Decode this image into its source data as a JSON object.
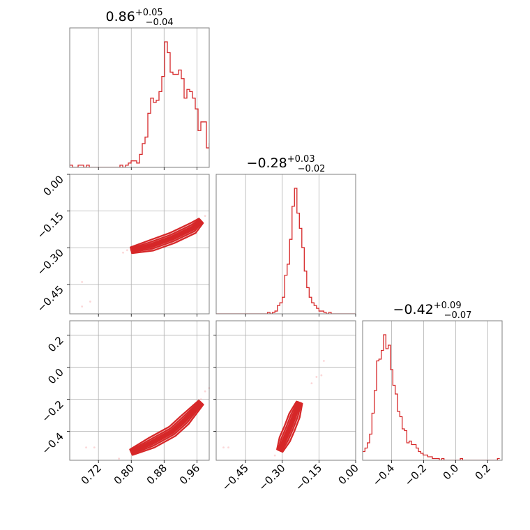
{
  "figure": {
    "type": "corner_plot",
    "color": "#d62728",
    "fill_light": "#f4c6c7",
    "fill_mid": "#e88d8f",
    "points_color": "#f7b6b8"
  },
  "chart_data": [
    {
      "type": "histogram",
      "panel": "hist-0",
      "title": {
        "value": "0.86",
        "plus": "+0.05",
        "minus": "−0.04"
      },
      "xlim": [
        0.65,
        0.99
      ],
      "x_grid": [
        0.72,
        0.8,
        0.88,
        0.96
      ],
      "bins_edges_start": 0.65,
      "bin_width": 0.0068,
      "counts": [
        1,
        0,
        0,
        1,
        1,
        0,
        1,
        0,
        0,
        0,
        0,
        0,
        0,
        0,
        0,
        0,
        0,
        0,
        1,
        0,
        1,
        2,
        3,
        3,
        2,
        6,
        11,
        14,
        25,
        32,
        30,
        31,
        35,
        42,
        58,
        53,
        44,
        43,
        43,
        45,
        41,
        32,
        36,
        35,
        32,
        27,
        17,
        21,
        21,
        9,
        11,
        8,
        3,
        5,
        2
      ]
    },
    {
      "type": "histogram",
      "panel": "hist-1",
      "title": {
        "value": "−0.28",
        "plus": "+0.03",
        "minus": "−0.02"
      },
      "xlim": [
        -0.57,
        0.0
      ],
      "x_grid": [
        -0.45,
        -0.3,
        -0.15,
        0.0
      ],
      "bins_edges_start": -0.57,
      "bin_width": 0.01,
      "counts": [
        0,
        0,
        0,
        0,
        0,
        0,
        0,
        0,
        0,
        0,
        0,
        0,
        0,
        0,
        0,
        0,
        0,
        0,
        0,
        0,
        0,
        1,
        0,
        1,
        2,
        6,
        8,
        12,
        28,
        36,
        54,
        78,
        91,
        73,
        62,
        48,
        31,
        19,
        12,
        8,
        6,
        4,
        2,
        2,
        1,
        0,
        1,
        0,
        0,
        0,
        0,
        0,
        0,
        0,
        0,
        0,
        0
      ]
    },
    {
      "type": "histogram",
      "panel": "hist-2",
      "title": {
        "value": "−0.42",
        "plus": "+0.09",
        "minus": "−0.07"
      },
      "xlim": [
        -0.58,
        0.29
      ],
      "x_ticks": [
        "−0.4",
        "−0.2",
        "0.0",
        "0.2"
      ],
      "x_tick_values": [
        -0.4,
        -0.2,
        0.0,
        0.2
      ],
      "bins_edges_start": -0.58,
      "bin_width": 0.0145,
      "counts": [
        5,
        7,
        10,
        15,
        27,
        40,
        57,
        58,
        63,
        72,
        64,
        66,
        52,
        43,
        38,
        28,
        25,
        18,
        17,
        10,
        11,
        9,
        9,
        7,
        5,
        4,
        3,
        3,
        2,
        2,
        1,
        1,
        1,
        0,
        1,
        0,
        0,
        0,
        0,
        0,
        0,
        0,
        1,
        0,
        0,
        0,
        0,
        0,
        0,
        0,
        0,
        0,
        0,
        0,
        0,
        0,
        0,
        0,
        1
      ]
    },
    {
      "type": "contour",
      "panel": "scatter-1-0",
      "xlim": [
        0.65,
        0.99
      ],
      "ylim": [
        -0.57,
        0.0
      ],
      "x_grid": [
        0.72,
        0.8,
        0.88,
        0.96
      ],
      "y_ticks": [
        "0.00",
        "−0.15",
        "−0.30",
        "−0.45"
      ],
      "y_tick_values": [
        0.0,
        -0.15,
        -0.3,
        -0.45
      ],
      "ridge": [
        [
          0.8,
          -0.31
        ],
        [
          0.85,
          -0.29
        ],
        [
          0.9,
          -0.26
        ],
        [
          0.95,
          -0.22
        ],
        [
          0.97,
          -0.19
        ]
      ],
      "samples": [
        [
          0.68,
          -0.44
        ],
        [
          0.68,
          -0.54
        ],
        [
          0.7,
          -0.52
        ],
        [
          0.78,
          -0.32
        ],
        [
          0.79,
          -0.31
        ],
        [
          0.98,
          -0.17
        ]
      ]
    },
    {
      "type": "contour",
      "panel": "scatter-2-0",
      "xlim": [
        0.65,
        0.99
      ],
      "ylim": [
        -0.58,
        0.29
      ],
      "x_ticks": [
        "0.72",
        "0.80",
        "0.88",
        "0.96"
      ],
      "x_tick_values": [
        0.72,
        0.8,
        0.88,
        0.96
      ],
      "y_ticks": [
        "0.2",
        "0.0",
        "−0.2",
        "−0.4"
      ],
      "y_tick_values": [
        0.2,
        0.0,
        -0.2,
        -0.4
      ],
      "ridge": [
        [
          0.8,
          -0.53
        ],
        [
          0.85,
          -0.47
        ],
        [
          0.9,
          -0.4
        ],
        [
          0.93,
          -0.33
        ],
        [
          0.97,
          -0.22
        ]
      ],
      "samples": [
        [
          0.69,
          -0.5
        ],
        [
          0.71,
          -0.5
        ],
        [
          0.77,
          -0.57
        ],
        [
          0.96,
          -0.25
        ],
        [
          0.97,
          -0.2
        ],
        [
          0.98,
          -0.15
        ],
        [
          0.99,
          -0.13
        ]
      ]
    },
    {
      "type": "contour",
      "panel": "scatter-2-1",
      "xlim": [
        -0.57,
        0.0
      ],
      "ylim": [
        -0.58,
        0.29
      ],
      "x_ticks": [
        "−0.45",
        "−0.30",
        "−0.15",
        "0.00"
      ],
      "x_tick_values": [
        -0.45,
        -0.3,
        -0.15,
        0.0
      ],
      "x_grid": [
        -0.45,
        -0.3,
        -0.15,
        0.0
      ],
      "ridge": [
        [
          -0.31,
          -0.52
        ],
        [
          -0.29,
          -0.45
        ],
        [
          -0.27,
          -0.38
        ],
        [
          -0.25,
          -0.3
        ],
        [
          -0.23,
          -0.22
        ]
      ],
      "samples": [
        [
          -0.54,
          -0.5
        ],
        [
          -0.52,
          -0.5
        ],
        [
          -0.33,
          -0.55
        ],
        [
          -0.18,
          -0.1
        ],
        [
          -0.16,
          -0.06
        ],
        [
          -0.14,
          -0.05
        ],
        [
          -0.13,
          0.04
        ]
      ]
    }
  ]
}
